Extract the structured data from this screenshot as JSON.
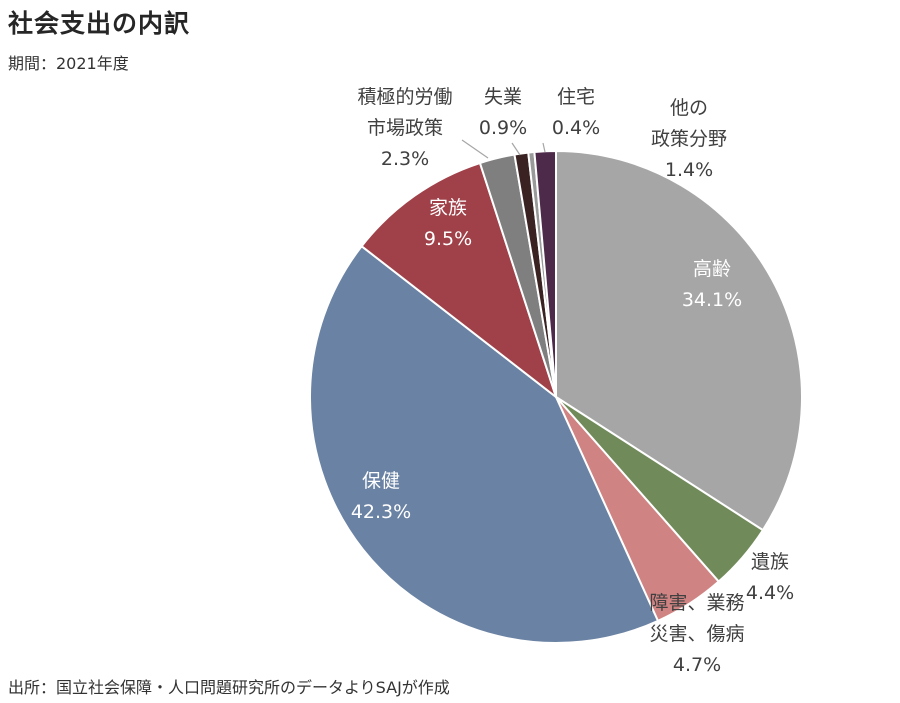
{
  "title": "社会支出の内訳",
  "subtitle": "期間：2021年度",
  "source": "出所：国立社会保障・人口問題研究所のデータよりSAJが作成",
  "chart_data": {
    "type": "pie",
    "start_angle_deg": 0,
    "direction": "clockwise",
    "slices": [
      {
        "label_lines": [
          "高齢"
        ],
        "value": 34.1,
        "value_text": "34.1%",
        "color": "#a6a6a6",
        "label_color": "#ffffff"
      },
      {
        "label_lines": [
          "遺族"
        ],
        "value": 4.4,
        "value_text": "4.4%",
        "color": "#708a5a",
        "label_color": "#404040"
      },
      {
        "label_lines": [
          "障害、業務",
          "災害、傷病"
        ],
        "value": 4.7,
        "value_text": "4.7%",
        "color": "#d08383",
        "label_color": "#404040"
      },
      {
        "label_lines": [
          "保健"
        ],
        "value": 42.3,
        "value_text": "42.3%",
        "color": "#6a82a3",
        "label_color": "#ffffff"
      },
      {
        "label_lines": [
          "家族"
        ],
        "value": 9.5,
        "value_text": "9.5%",
        "color": "#a04149",
        "label_color": "#ffffff"
      },
      {
        "label_lines": [
          "積極的労働",
          "市場政策"
        ],
        "value": 2.3,
        "value_text": "2.3%",
        "color": "#7f7f7f",
        "label_color": "#404040"
      },
      {
        "label_lines": [
          "失業"
        ],
        "value": 0.9,
        "value_text": "0.9%",
        "color": "#3a2222",
        "label_color": "#404040"
      },
      {
        "label_lines": [
          "住宅"
        ],
        "value": 0.4,
        "value_text": "0.4%",
        "color": "#9a9a9a",
        "label_color": "#404040"
      },
      {
        "label_lines": [
          "他の",
          "政策分野"
        ],
        "value": 1.4,
        "value_text": "1.4%",
        "color": "#4e2a4a",
        "label_color": "#404040"
      }
    ]
  }
}
